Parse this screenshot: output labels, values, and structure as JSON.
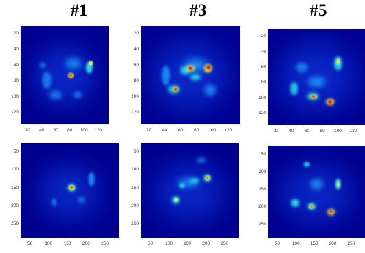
{
  "titles": [
    "#1",
    "#3",
    "#5"
  ],
  "panels": [
    {
      "id": "r1c1",
      "yticks": [
        "20",
        "40",
        "60",
        "80",
        "100",
        "120"
      ],
      "xticks": [
        "20",
        "40",
        "60",
        "80",
        "100",
        "120"
      ]
    },
    {
      "id": "r1c2",
      "yticks": [
        "20",
        "40",
        "60",
        "80",
        "100",
        "120"
      ],
      "xticks": [
        "20",
        "40",
        "60",
        "80",
        "100",
        "120"
      ]
    },
    {
      "id": "r1c3",
      "yticks": [
        "20",
        "40",
        "60",
        "80",
        "100",
        "120"
      ],
      "xticks": [
        "20",
        "40",
        "60",
        "80",
        "100",
        "120"
      ]
    },
    {
      "id": "r2c1",
      "yticks": [
        "50",
        "100",
        "150",
        "200",
        "250"
      ],
      "xticks": [
        "50",
        "100",
        "150",
        "200",
        "250"
      ]
    },
    {
      "id": "r2c2",
      "yticks": [
        "50",
        "100",
        "150",
        "200",
        "250"
      ],
      "xticks": [
        "50",
        "100",
        "150",
        "200",
        "250"
      ]
    },
    {
      "id": "r2c3",
      "yticks": [
        "50",
        "100",
        "150",
        "200",
        "250"
      ],
      "xticks": [
        "50",
        "100",
        "150",
        "200",
        "250"
      ]
    }
  ],
  "colors": {
    "background": "#00008f",
    "low": "#0d36d6",
    "mid": "#1ea0ff",
    "cyan": "#2fe8f0",
    "yellow": "#f5ef3a",
    "red": "#d81010"
  }
}
